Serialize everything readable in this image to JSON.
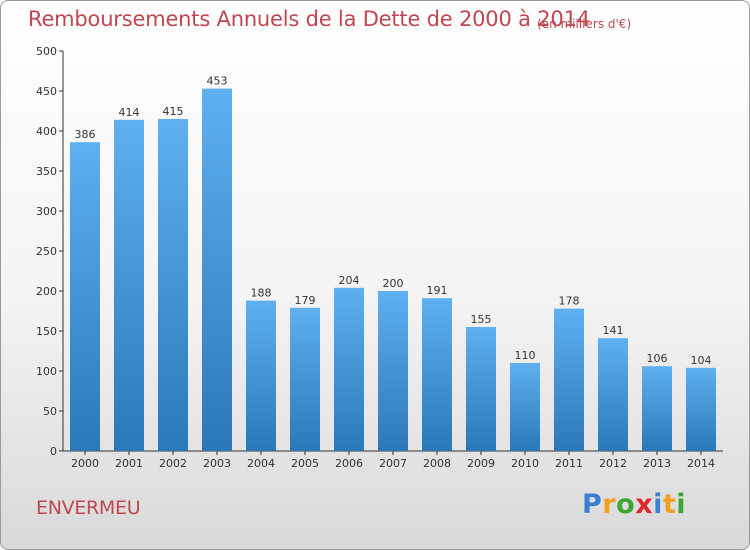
{
  "header": {
    "title": "Remboursements Annuels de la Dette de 2000 à 2014",
    "subtitle": "(en milliers d'€)"
  },
  "footer": {
    "commune": "ENVERMEU",
    "logo_letters": [
      {
        "char": "P",
        "color": "#3a7fd5"
      },
      {
        "char": "r",
        "color": "#f0a020"
      },
      {
        "char": "o",
        "color": "#3fa535"
      },
      {
        "char": "x",
        "color": "#e0282c"
      },
      {
        "char": "i",
        "color": "#3a7fd5"
      },
      {
        "char": "t",
        "color": "#f0a020"
      },
      {
        "char": "i",
        "color": "#3fa535"
      }
    ]
  },
  "colors": {
    "title": "#c0474f",
    "bar_top": "#5fb0f0",
    "bar_bottom": "#2a78b8"
  },
  "chart_data": {
    "type": "bar",
    "title": "Remboursements Annuels de la Dette de 2000 à 2014",
    "subtitle": "(en milliers d'€)",
    "xlabel": "",
    "ylabel": "",
    "categories": [
      "2000",
      "2001",
      "2002",
      "2003",
      "2004",
      "2005",
      "2006",
      "2007",
      "2008",
      "2009",
      "2010",
      "2011",
      "2012",
      "2013",
      "2014"
    ],
    "values": [
      386,
      414,
      415,
      453,
      188,
      179,
      204,
      200,
      191,
      155,
      110,
      178,
      141,
      106,
      104
    ],
    "ylim": [
      0,
      500
    ],
    "yticks": [
      0,
      50,
      100,
      150,
      200,
      250,
      300,
      350,
      400,
      450,
      500
    ],
    "grid": false
  }
}
